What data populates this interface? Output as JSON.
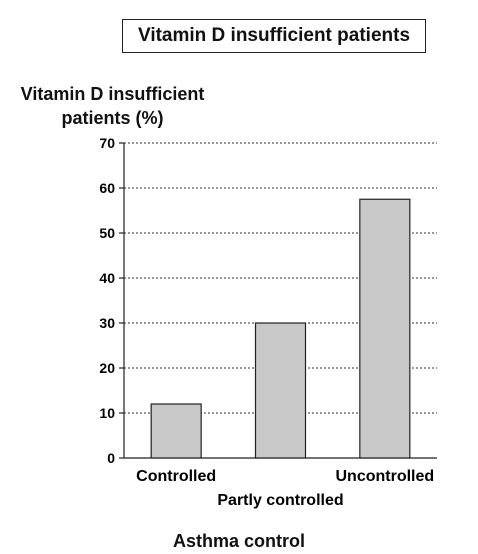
{
  "chart_data": {
    "type": "bar",
    "title": "Vitamin D insufficient patients",
    "ylabel_lines": [
      "Vitamin D insufficient",
      "patients (%)"
    ],
    "xlabel": "Asthma control",
    "categories": [
      "Controlled",
      "Partly controlled",
      "Uncontrolled"
    ],
    "values": [
      12,
      30,
      57.5
    ],
    "ylim": [
      0,
      70
    ],
    "yticks": [
      0,
      10,
      20,
      30,
      40,
      50,
      60,
      70
    ],
    "grid": "horizontal-dotted",
    "bar_color": "#c8c8c8"
  }
}
